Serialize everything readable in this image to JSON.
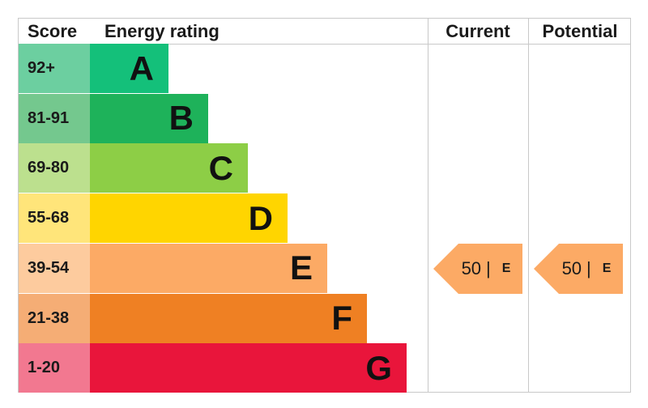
{
  "headers": {
    "score": "Score",
    "rating": "Energy rating",
    "current": "Current",
    "potential": "Potential"
  },
  "chart_data": {
    "type": "bar",
    "bands": [
      {
        "letter": "A",
        "score": "92+",
        "color": "#14c07a",
        "tint": "#6ccfa0"
      },
      {
        "letter": "B",
        "score": "81-91",
        "color": "#1eb25a",
        "tint": "#74c88e"
      },
      {
        "letter": "C",
        "score": "69-80",
        "color": "#8dce46",
        "tint": "#bce08e"
      },
      {
        "letter": "D",
        "score": "55-68",
        "color": "#ffd500",
        "tint": "#ffe57a"
      },
      {
        "letter": "E",
        "score": "39-54",
        "color": "#fcaa65",
        "tint": "#fdcb9e"
      },
      {
        "letter": "F",
        "score": "21-38",
        "color": "#ef8023",
        "tint": "#f5ad75"
      },
      {
        "letter": "G",
        "score": "1-20",
        "color": "#e9153b",
        "tint": "#f27890"
      }
    ],
    "current": {
      "value": 50,
      "separator": "|",
      "band": "E",
      "color": "#fcaa65"
    },
    "potential": {
      "value": 50,
      "separator": "|",
      "band": "E",
      "color": "#fcaa65"
    }
  }
}
